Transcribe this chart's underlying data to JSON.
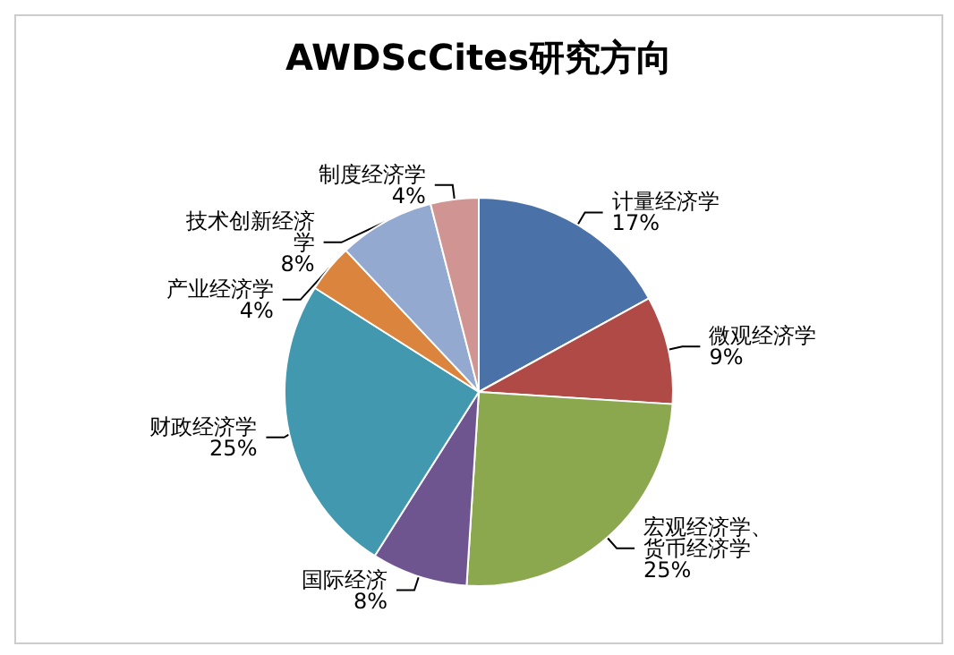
{
  "chart_data": {
    "type": "pie",
    "title": "AWDScCites研究方向",
    "categories": [
      "计量经济学",
      "微观经济学",
      "宏观经济学、货币经济学",
      "国际经济",
      "财政经济学",
      "产业经济学",
      "技术创新经济学",
      "制度经济学"
    ],
    "values": [
      17,
      9,
      25,
      8,
      25,
      4,
      8,
      4
    ],
    "value_labels": [
      "17%",
      "9%",
      "25%",
      "8%",
      "25%",
      "4%",
      "8%",
      "4%"
    ],
    "colors": [
      "#4a72a8",
      "#b04a47",
      "#8ba84f",
      "#6f5590",
      "#4298ae",
      "#db843d",
      "#93a9cf",
      "#d09493"
    ],
    "legend": false
  }
}
